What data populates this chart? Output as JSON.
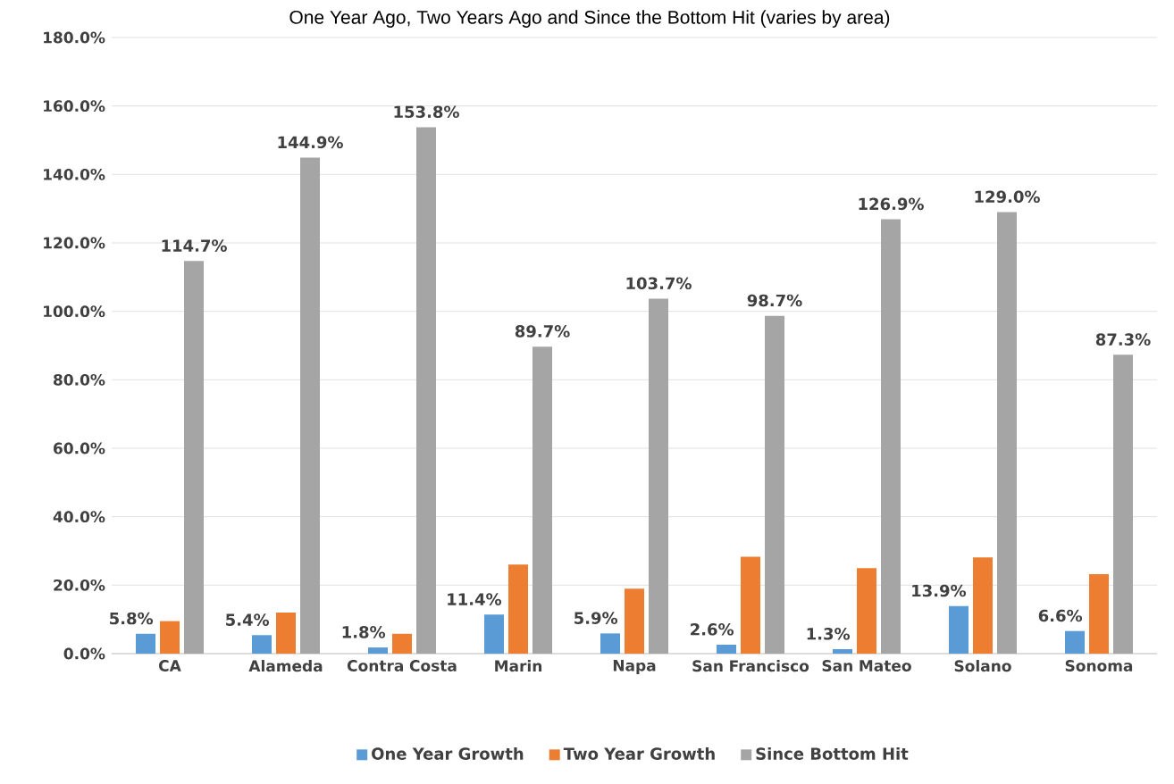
{
  "chart_data": {
    "type": "bar",
    "title": "One Year Ago, Two Years Ago and Since the Bottom Hit (varies by area)",
    "categories": [
      "CA",
      "Alameda",
      "Contra Costa",
      "Marin",
      "Napa",
      "San Francisco",
      "San Mateo",
      "Solano",
      "Sonoma"
    ],
    "series": [
      {
        "name": "One Year Growth",
        "color": "#5b9bd5",
        "values": [
          5.8,
          5.4,
          1.8,
          11.4,
          5.9,
          2.6,
          1.3,
          13.9,
          6.6
        ],
        "value_labels": [
          "5.8%",
          "5.4%",
          "1.8%",
          "11.4%",
          "5.9%",
          "2.6%",
          "1.3%",
          "13.9%",
          "6.6%"
        ]
      },
      {
        "name": "Two Year Growth",
        "color": "#ed7d31",
        "values": [
          9.5,
          12.0,
          5.8,
          26.0,
          19.0,
          28.3,
          25.0,
          28.1,
          23.2
        ]
      },
      {
        "name": "Since Bottom Hit",
        "color": "#a5a5a5",
        "values": [
          114.7,
          144.9,
          153.8,
          89.7,
          103.7,
          98.7,
          126.9,
          129.0,
          87.3
        ],
        "value_labels": [
          "114.7%",
          "144.9%",
          "153.8%",
          "89.7%",
          "103.7%",
          "98.7%",
          "126.9%",
          "129.0%",
          "87.3%"
        ]
      }
    ],
    "ylim": [
      0,
      180
    ],
    "yticks": [
      {
        "value": 0,
        "label": "0.0%"
      },
      {
        "value": 20,
        "label": "20.0%"
      },
      {
        "value": 40,
        "label": "40.0%"
      },
      {
        "value": 60,
        "label": "60.0%"
      },
      {
        "value": 80,
        "label": "80.0%"
      },
      {
        "value": 100,
        "label": "100.0%"
      },
      {
        "value": 120,
        "label": "120.0%"
      },
      {
        "value": 140,
        "label": "140.0%"
      },
      {
        "value": 160,
        "label": "160.0%"
      },
      {
        "value": 180,
        "label": "180.0%"
      }
    ],
    "grid": "y",
    "legend": "bottom"
  }
}
